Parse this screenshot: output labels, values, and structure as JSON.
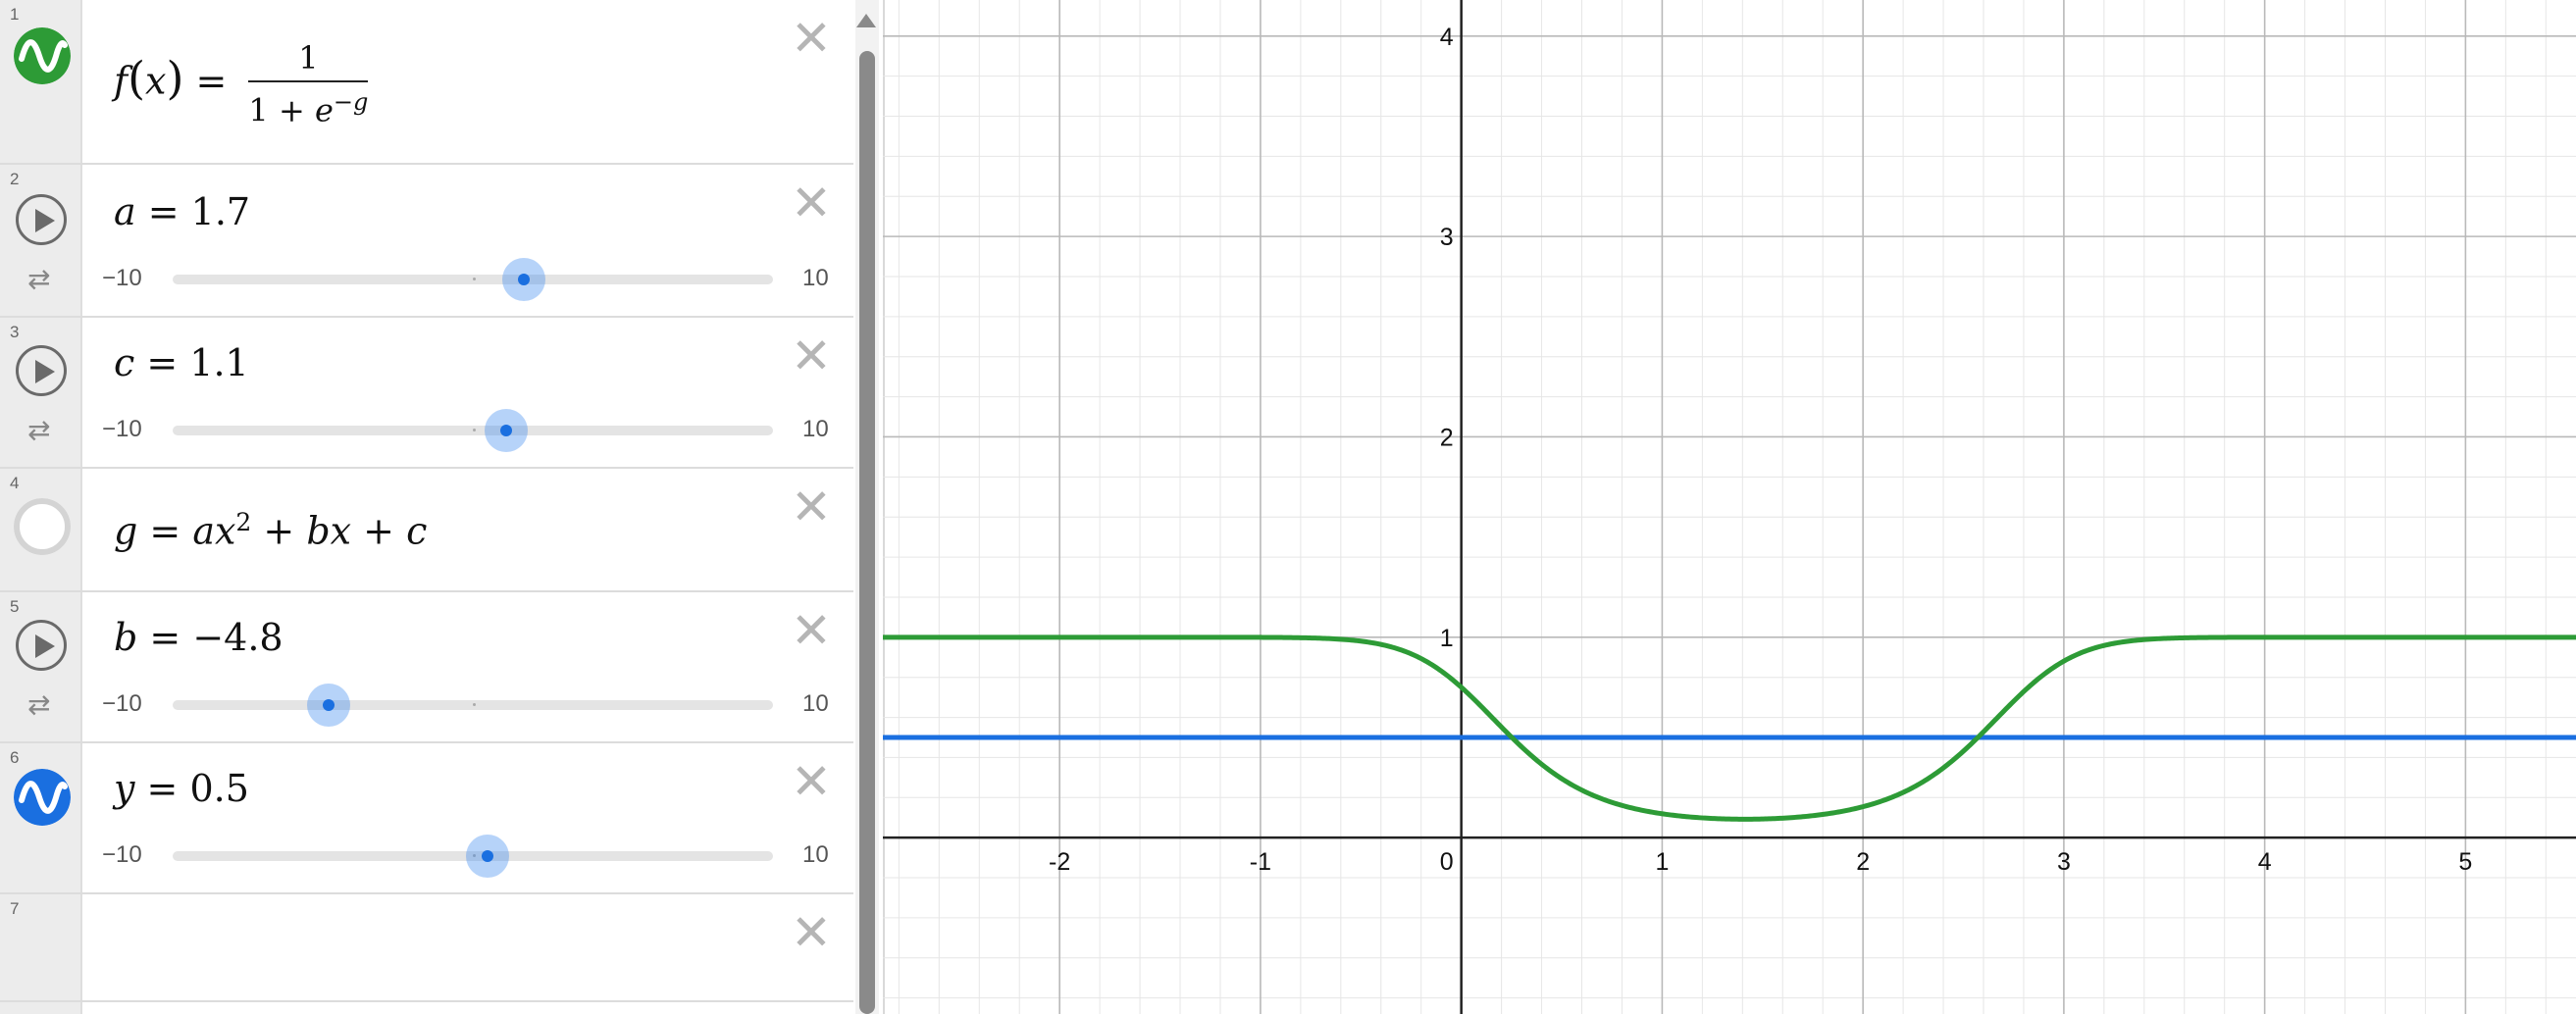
{
  "expressions": [
    {
      "num": "1",
      "type": "function",
      "f": "f",
      "x": "x",
      "numerator": "1",
      "den_one": "1",
      "den_e": "e",
      "den_exp": "−g",
      "color": "#2d9b36"
    },
    {
      "num": "2",
      "type": "slider",
      "var": "a",
      "value": "1.7",
      "min": "−10",
      "max": "10",
      "fraction": 0.585
    },
    {
      "num": "3",
      "type": "slider",
      "var": "c",
      "value": "1.1",
      "min": "−10",
      "max": "10",
      "fraction": 0.555
    },
    {
      "num": "4",
      "type": "expression",
      "lhs": "g",
      "a": "a",
      "x": "x",
      "exp": "2",
      "b": "b",
      "c": "c"
    },
    {
      "num": "5",
      "type": "slider",
      "var": "b",
      "value": "−4.8",
      "min": "−10",
      "max": "10",
      "fraction": 0.26
    },
    {
      "num": "6",
      "type": "slider-graphed",
      "var": "y",
      "value": "0.5",
      "min": "−10",
      "max": "10",
      "fraction": 0.525,
      "color": "#1a6fe0"
    },
    {
      "num": "7",
      "type": "empty"
    }
  ],
  "graph": {
    "x_ticks": [
      "-2",
      "-1",
      "0",
      "1",
      "2",
      "3",
      "4",
      "5"
    ],
    "y_ticks": [
      "1",
      "2",
      "3",
      "4"
    ],
    "xlim": [
      -2.88,
      5.55
    ],
    "ylim": [
      -0.88,
      4.18
    ],
    "curve_color": "#2d9b36",
    "line_color": "#1a6fe0"
  },
  "chart_data": {
    "type": "line",
    "series": [
      {
        "name": "f(x) = 1/(1+e^(-g))",
        "params": {
          "a": 1.7,
          "b": -4.8,
          "c": 1.1
        }
      },
      {
        "name": "y = 0.5",
        "values": [
          0.5
        ]
      }
    ],
    "xlim": [
      -2.88,
      5.55
    ],
    "ylim": [
      -0.88,
      4.18
    ],
    "grid": true
  }
}
